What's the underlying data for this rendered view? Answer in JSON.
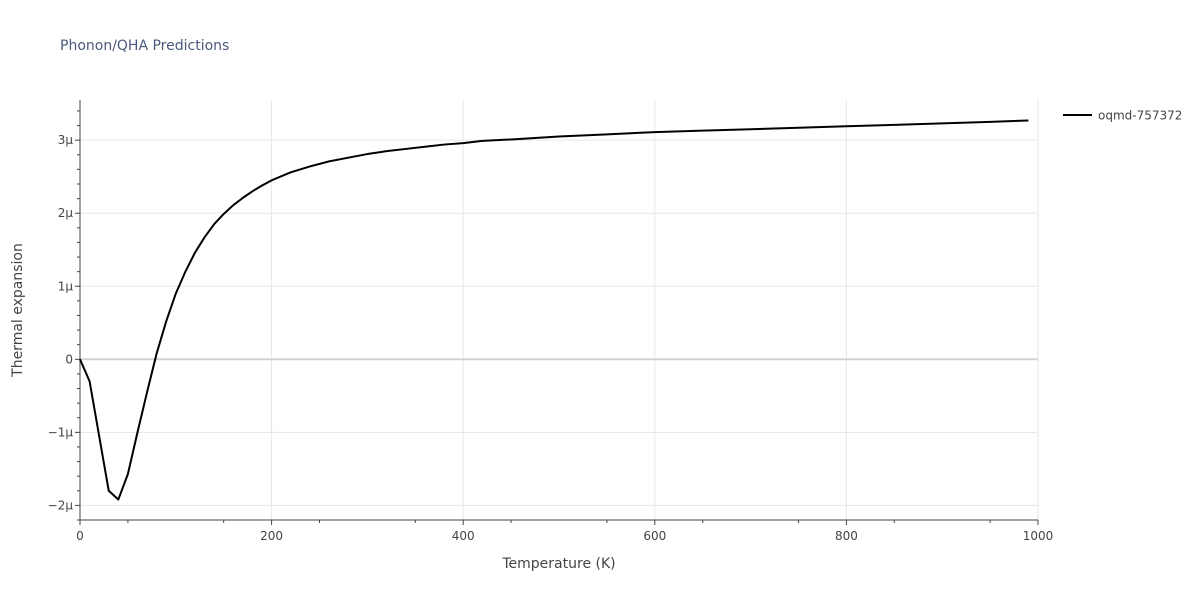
{
  "chart_data": {
    "type": "line",
    "title": "Phonon/QHA Predictions",
    "xlabel": "Temperature (K)",
    "ylabel": "Thermal expansion",
    "xlim": [
      0,
      1000
    ],
    "ylim": [
      -2.2e-06,
      3.55e-06
    ],
    "grid": true,
    "legend_position": "top-right",
    "x_ticks": [
      {
        "value": 0,
        "label": "0"
      },
      {
        "value": 200,
        "label": "200"
      },
      {
        "value": 400,
        "label": "400"
      },
      {
        "value": 600,
        "label": "600"
      },
      {
        "value": 800,
        "label": "800"
      },
      {
        "value": 1000,
        "label": "1000"
      }
    ],
    "y_ticks": [
      {
        "value": -2e-06,
        "label": "−2μ"
      },
      {
        "value": -1e-06,
        "label": "−1μ"
      },
      {
        "value": 0,
        "label": "0"
      },
      {
        "value": 1e-06,
        "label": "1μ"
      },
      {
        "value": 2e-06,
        "label": "2μ"
      },
      {
        "value": 3e-06,
        "label": "3μ"
      }
    ],
    "colors": {
      "line": "#000000",
      "grid": "#e6e6e6",
      "zeroline": "#d3d3d3",
      "text": "#444444",
      "title": "#4a5a7a"
    },
    "series": [
      {
        "name": "oqmd-757372",
        "x": [
          0,
          10,
          20,
          30,
          40,
          50,
          60,
          70,
          80,
          90,
          100,
          110,
          120,
          130,
          140,
          150,
          160,
          170,
          180,
          190,
          200,
          220,
          240,
          260,
          280,
          300,
          320,
          340,
          360,
          380,
          400,
          420,
          450,
          500,
          550,
          600,
          650,
          700,
          750,
          800,
          850,
          900,
          950,
          990
        ],
        "y": [
          0,
          -3e-07,
          -1.05e-06,
          -1.8e-06,
          -1.92e-06,
          -1.57e-06,
          -1e-06,
          -4.5e-07,
          8e-08,
          5.2e-07,
          9e-07,
          1.2e-06,
          1.46e-06,
          1.67e-06,
          1.85e-06,
          1.99e-06,
          2.11e-06,
          2.21e-06,
          2.3e-06,
          2.38e-06,
          2.45e-06,
          2.56e-06,
          2.64e-06,
          2.71e-06,
          2.76e-06,
          2.81e-06,
          2.85e-06,
          2.88e-06,
          2.91e-06,
          2.94e-06,
          2.96e-06,
          2.99e-06,
          3.01e-06,
          3.05e-06,
          3.08e-06,
          3.11e-06,
          3.13e-06,
          3.15e-06,
          3.17e-06,
          3.19e-06,
          3.21e-06,
          3.23e-06,
          3.25e-06,
          3.27e-06
        ]
      }
    ]
  }
}
